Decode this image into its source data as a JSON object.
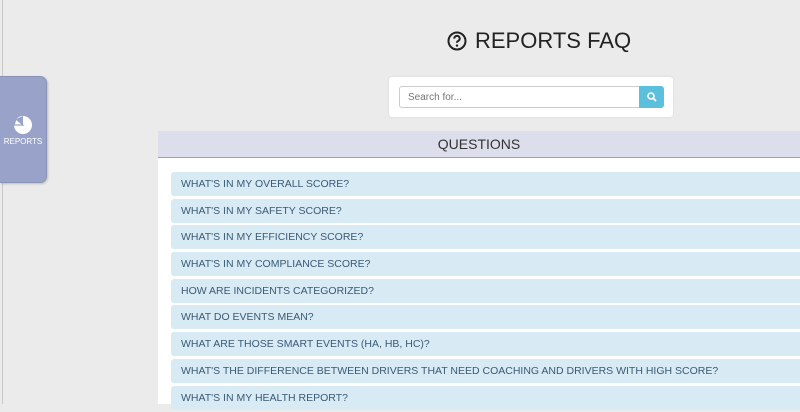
{
  "sidebar": {
    "tab_label": "REPORTS",
    "tab_icon": "pie-chart-icon"
  },
  "header": {
    "title": "REPORTS FAQ",
    "icon": "question-circle-icon"
  },
  "search": {
    "placeholder": "Search for...",
    "value": "",
    "button_icon": "search-icon",
    "button_color": "#5bc0de"
  },
  "questions": {
    "heading": "QUESTIONS",
    "items": [
      "WHAT'S IN MY OVERALL SCORE?",
      "WHAT'S IN MY SAFETY SCORE?",
      "WHAT'S IN MY EFFICIENCY SCORE?",
      "WHAT'S IN MY COMPLIANCE SCORE?",
      "HOW ARE INCIDENTS CATEGORIZED?",
      "WHAT DO EVENTS MEAN?",
      "WHAT ARE THOSE SMART EVENTS (HA, HB, HC)?",
      "WHAT'S THE DIFFERENCE BETWEEN DRIVERS THAT NEED COACHING AND DRIVERS WITH HIGH SCORE?",
      "WHAT'S IN MY HEALTH REPORT?"
    ]
  }
}
